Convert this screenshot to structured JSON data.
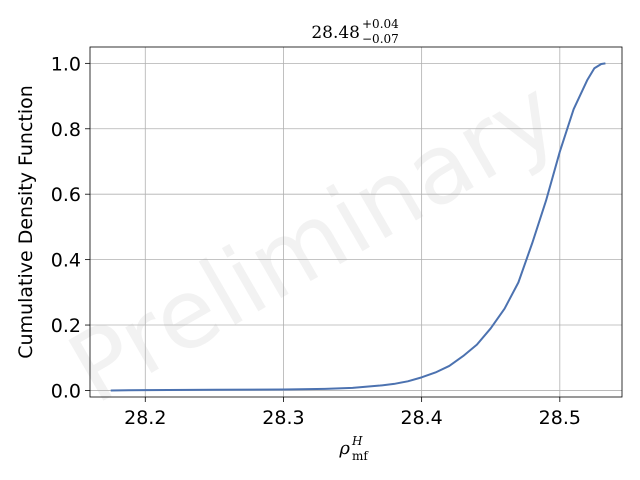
{
  "chart_data": {
    "type": "line",
    "title": {
      "base": "28.48",
      "upper": "+0.04",
      "lower": "−0.07"
    },
    "xlabel": {
      "symbol": "ρ",
      "subscript": "mf",
      "superscript": "H"
    },
    "ylabel": "Cumulative Density Function",
    "xlim": [
      28.16,
      28.545
    ],
    "ylim": [
      -0.02,
      1.05
    ],
    "x_ticks": [
      28.2,
      28.3,
      28.4,
      28.5
    ],
    "x_tick_labels": [
      "28.2",
      "28.3",
      "28.4",
      "28.5"
    ],
    "y_ticks": [
      0.0,
      0.2,
      0.4,
      0.6,
      0.8,
      1.0
    ],
    "y_tick_labels": [
      "0.0",
      "0.2",
      "0.4",
      "0.6",
      "0.8",
      "1.0"
    ],
    "grid": true,
    "watermark": "Preliminary",
    "series_color": "#4c72b0",
    "series": [
      {
        "x": [
          28.175,
          28.2,
          28.25,
          28.3,
          28.33,
          28.35,
          28.37,
          28.38,
          28.39,
          28.4,
          28.41,
          28.42,
          28.43,
          28.44,
          28.45,
          28.46,
          28.47,
          28.48,
          28.49,
          28.5,
          28.51,
          28.52,
          28.525,
          28.53,
          28.533
        ],
        "y": [
          0.0,
          0.001,
          0.002,
          0.003,
          0.005,
          0.008,
          0.015,
          0.02,
          0.028,
          0.04,
          0.055,
          0.075,
          0.105,
          0.14,
          0.19,
          0.25,
          0.33,
          0.45,
          0.58,
          0.73,
          0.86,
          0.95,
          0.985,
          0.998,
          1.0
        ]
      }
    ]
  }
}
